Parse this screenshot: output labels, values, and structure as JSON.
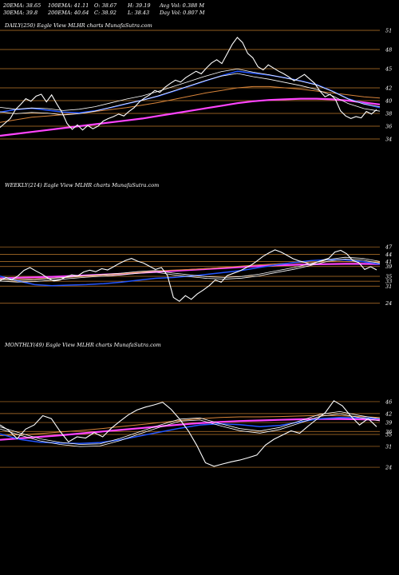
{
  "header": {
    "ema20": "20EMA: 38.65",
    "ema30": "30EMA: 39.8",
    "ema100": "100EMA: 41.11",
    "ema200": "200EMA: 40.64",
    "open": "O: 38.67",
    "close": "C: 38.92",
    "high": "H: 39.19",
    "low": "L: 38.43",
    "avg_vol": "Avg Vol: 0.388  M",
    "day_vol": "Day Vol: 0.807 M"
  },
  "chart_data": [
    {
      "type": "line",
      "title": "DAILY(250) Eagle  View  MLHR charts MunafaSutra.com",
      "y_ticks": [
        51,
        48,
        45,
        42,
        40,
        38,
        36,
        34
      ],
      "ylim": [
        33,
        52
      ],
      "price_series": [
        35.8,
        36.5,
        37.2,
        38.6,
        39.4,
        40.3,
        39.9,
        40.7,
        41.0,
        39.8,
        40.9,
        39.5,
        38.2,
        36.4,
        35.5,
        36.2,
        35.4,
        36.1,
        35.6,
        36.0,
        36.8,
        37.2,
        37.5,
        37.9,
        37.6,
        38.3,
        38.9,
        39.8,
        40.4,
        40.9,
        41.6,
        41.3,
        42.1,
        42.7,
        43.2,
        42.9,
        43.6,
        44.1,
        44.6,
        44.2,
        45.1,
        45.9,
        46.4,
        45.8,
        47.3,
        48.8,
        49.9,
        49.1,
        47.4,
        46.7,
        45.3,
        44.8,
        45.6,
        45.1,
        44.6,
        44.2,
        43.7,
        43.1,
        43.6,
        44.1,
        43.4,
        42.7,
        41.5,
        40.6,
        41.0,
        40.2,
        38.4,
        37.6,
        37.2,
        37.5,
        37.3,
        38.3,
        37.9,
        38.6
      ],
      "series": [
        {
          "name": "20EMA",
          "color": "#ffffff",
          "values": [
            38.6,
            38.3,
            38.5,
            38.4,
            38.1,
            38.3,
            38.7,
            39.3,
            39.9,
            40.4,
            41.1,
            41.9,
            42.7,
            43.5,
            44.2,
            44.6,
            44.1,
            43.7,
            43.2,
            42.7,
            42.1,
            41.1,
            39.9,
            39.1,
            38.7
          ]
        },
        {
          "name": "30EMA",
          "color": "#2255ff",
          "values": [
            38.2,
            38.6,
            38.8,
            38.5,
            38.2,
            38.1,
            38.4,
            38.9,
            39.5,
            40.1,
            40.7,
            41.5,
            42.3,
            43.1,
            43.9,
            44.6,
            44.3,
            44.0,
            43.6,
            43.1,
            42.5,
            41.5,
            40.3,
            39.5,
            38.9
          ]
        },
        {
          "name": "100EMA",
          "color": "#d8843a",
          "values": [
            36.6,
            37.0,
            37.4,
            37.6,
            37.8,
            38.0,
            38.3,
            38.6,
            38.9,
            39.3,
            39.7,
            40.2,
            40.7,
            41.2,
            41.6,
            42.0,
            42.2,
            42.2,
            42.0,
            41.8,
            41.5,
            41.2,
            40.9,
            40.6,
            40.4
          ]
        },
        {
          "name": "200EMA",
          "color": "#ff44ff",
          "values": [
            34.5,
            34.8,
            35.1,
            35.4,
            35.7,
            36.0,
            36.3,
            36.6,
            36.9,
            37.2,
            37.6,
            38.0,
            38.4,
            38.8,
            39.2,
            39.6,
            39.9,
            40.1,
            40.2,
            40.3,
            40.3,
            40.2,
            40.0,
            39.7,
            39.4
          ]
        }
      ]
    },
    {
      "type": "line",
      "title": "WEEKLY(214) Eagle  View  MLHR charts MunafaSutra.com",
      "y_ticks": [
        47,
        44,
        41,
        39,
        35,
        33,
        31,
        24
      ],
      "ylim": [
        20,
        50
      ],
      "price_series": [
        33.2,
        34.5,
        33.6,
        35.2,
        37.4,
        38.6,
        37.2,
        35.9,
        34.3,
        33.1,
        33.5,
        34.7,
        35.6,
        35.2,
        36.8,
        37.5,
        36.9,
        38.1,
        37.6,
        38.9,
        40.3,
        41.5,
        42.3,
        41.2,
        40.4,
        39.1,
        37.8,
        38.6,
        35.4,
        26.4,
        24.8,
        27.1,
        25.6,
        27.8,
        29.4,
        31.2,
        33.5,
        32.6,
        35.3,
        36.2,
        37.1,
        38.3,
        39.6,
        41.3,
        43.2,
        44.6,
        45.8,
        44.9,
        43.6,
        42.2,
        41.3,
        40.7,
        39.8,
        40.8,
        41.6,
        42.4,
        44.9,
        45.6,
        44.2,
        41.5,
        40.6,
        37.8,
        38.9,
        37.6
      ],
      "series": [
        {
          "name": "20EMA",
          "color": "#ffffff",
          "values": [
            33.4,
            33.0,
            33.2,
            33.8,
            34.4,
            35.0,
            35.4,
            35.9,
            36.6,
            37.0,
            36.0,
            35.2,
            34.5,
            34.2,
            34.6,
            35.5,
            36.9,
            38.2,
            39.8,
            41.5,
            42.4,
            42.0,
            40.7
          ]
        },
        {
          "name": "30EMA",
          "color": "#2255ff",
          "values": [
            35.1,
            33.2,
            31.6,
            31.2,
            31.4,
            31.6,
            32.0,
            32.6,
            33.4,
            34.2,
            34.5,
            35.1,
            35.8,
            36.6,
            37.4,
            38.6,
            39.7,
            40.6,
            41.4,
            41.8,
            41.7,
            41.0,
            40.0
          ]
        },
        {
          "name": "100EMA",
          "color": "#d8843a",
          "values": [
            34.0,
            33.9,
            34.0,
            34.2,
            34.6,
            35.0,
            35.5,
            36.0,
            36.6,
            37.2,
            37.5,
            37.8,
            38.2,
            38.7,
            39.2,
            39.7,
            40.1,
            40.5,
            40.8,
            41.0,
            41.0,
            40.9,
            40.7
          ]
        },
        {
          "name": "200EMA",
          "color": "#ff44ff",
          "values": [
            34.2,
            34.4,
            34.6,
            34.8,
            35.1,
            35.4,
            35.7,
            36.0,
            36.4,
            36.8,
            37.2,
            37.6,
            38.0,
            38.4,
            38.8,
            39.2,
            39.5,
            39.7,
            39.9,
            40.0,
            40.1,
            40.1,
            40.0
          ]
        }
      ]
    },
    {
      "type": "line",
      "title": "MONTHLY(49) Eagle  View  MLHR charts MunafaSutra.com",
      "y_ticks": [
        46,
        42,
        39,
        36,
        35,
        31,
        24
      ],
      "ylim": [
        20,
        50
      ],
      "price_series": [
        38.2,
        36.4,
        33.6,
        36.8,
        38.2,
        41.3,
        40.3,
        36.1,
        32.5,
        34.2,
        33.8,
        35.6,
        34.2,
        37.1,
        39.4,
        41.6,
        43.2,
        44.2,
        44.9,
        45.8,
        43.4,
        40.1,
        36.2,
        31.3,
        25.5,
        24.3,
        25.1,
        25.8,
        26.4,
        27.2,
        28.1,
        31.4,
        33.4,
        34.8,
        36.2,
        35.4,
        37.8,
        40.1,
        42.3,
        46.3,
        44.6,
        41.1,
        38.2,
        40.3,
        37.6
      ],
      "series": [
        {
          "name": "20EMA",
          "color": "#ffffff",
          "values": [
            37.2,
            35.1,
            33.2,
            32.0,
            31.3,
            31.5,
            33.3,
            35.6,
            37.8,
            39.8,
            40.2,
            38.3,
            36.6,
            35.8,
            37.0,
            39.2,
            41.4,
            42.3,
            41.0,
            39.9
          ]
        },
        {
          "name": "30EMA",
          "color": "#2255ff",
          "values": [
            35.2,
            33.3,
            32.4,
            32.1,
            32.0,
            32.3,
            33.2,
            34.5,
            35.8,
            37.1,
            38.2,
            38.6,
            38.3,
            37.6,
            38.0,
            39.2,
            40.3,
            40.7,
            40.6,
            40.3
          ]
        },
        {
          "name": "100EMA",
          "color": "#d8843a",
          "values": [
            34.6,
            34.9,
            35.3,
            35.8,
            36.3,
            36.9,
            37.6,
            38.3,
            39.0,
            39.7,
            40.3,
            40.7,
            40.9,
            40.9,
            41.0,
            41.2,
            41.4,
            41.3,
            41.0,
            40.7
          ]
        },
        {
          "name": "200EMA",
          "color": "#ff44ff",
          "values": [
            33.2,
            33.7,
            34.2,
            34.7,
            35.3,
            35.9,
            36.5,
            37.1,
            37.7,
            38.3,
            38.8,
            39.2,
            39.5,
            39.7,
            39.9,
            40.1,
            40.2,
            40.2,
            40.1,
            39.9
          ]
        }
      ]
    }
  ]
}
